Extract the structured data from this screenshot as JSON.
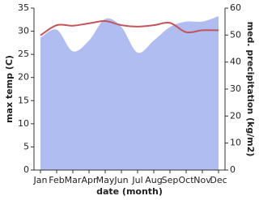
{
  "chart_data": {
    "type": "line",
    "x_label": "date (month)",
    "y_label": "max temp (C)",
    "y2_label": "med. precipitation (kg/m2)",
    "categories": [
      "Jan",
      "Feb",
      "Mar",
      "Apr",
      "May",
      "Jun",
      "Jul",
      "Aug",
      "Sep",
      "Oct",
      "Nov",
      "Dec"
    ],
    "ylim": [
      0,
      35
    ],
    "yticks": [
      0,
      5,
      10,
      15,
      20,
      25,
      30,
      35
    ],
    "y2lim": [
      0,
      60
    ],
    "y2ticks": [
      0,
      10,
      20,
      30,
      40,
      50,
      60
    ],
    "grid": false,
    "series": [
      {
        "name": "med. precipitation (kg/m2)",
        "type": "area",
        "axis": "y2",
        "color": "#b0bdf0",
        "values": [
          49,
          52,
          44,
          48,
          56,
          53,
          43.5,
          48,
          53,
          55,
          55,
          57
        ]
      },
      {
        "name": "max temp (C)",
        "type": "line",
        "axis": "y",
        "color": "#c4555a",
        "values": [
          29.1,
          31.3,
          31.2,
          31.7,
          32.2,
          31.3,
          31.0,
          31.3,
          31.8,
          29.8,
          30.2,
          30.2
        ]
      }
    ]
  }
}
